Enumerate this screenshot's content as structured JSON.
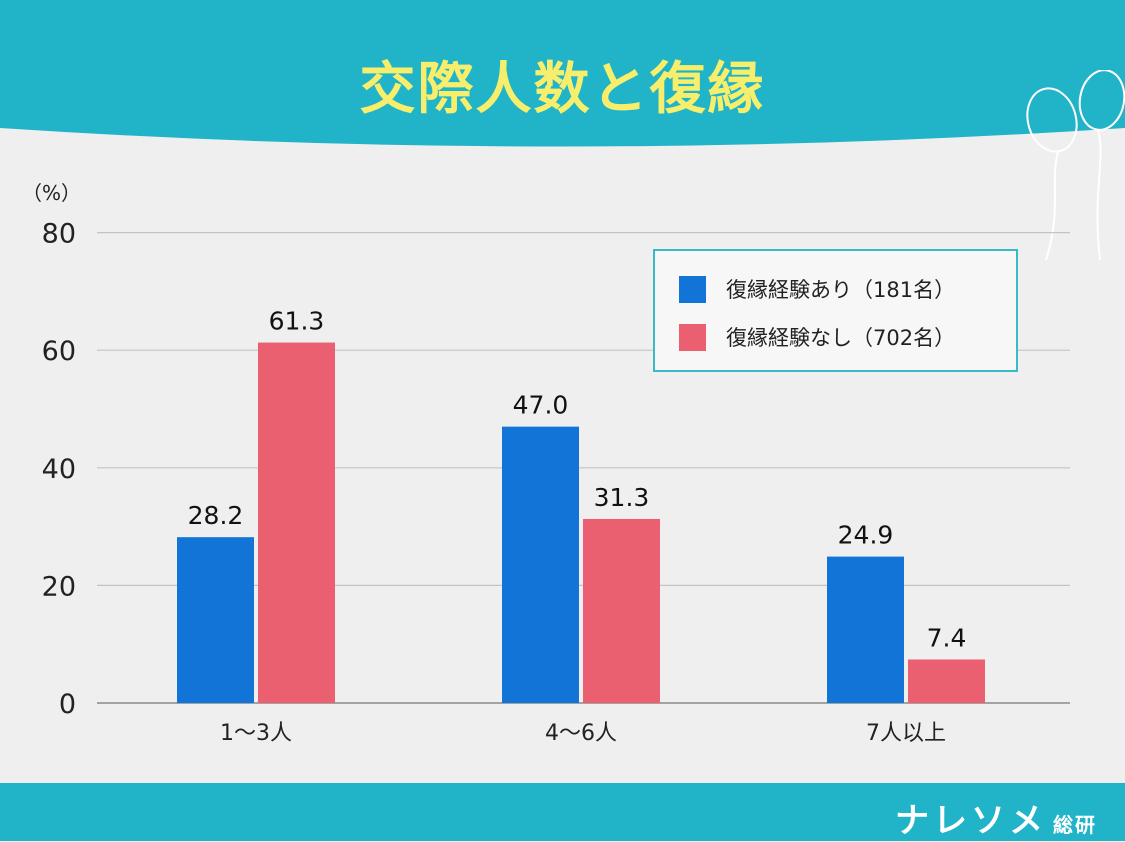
{
  "header": {
    "title": "交際人数と復縁",
    "band_color": "#21b4c8"
  },
  "chart_data": {
    "type": "bar",
    "unit_label": "（%）",
    "categories": [
      "1～3人",
      "4～6人",
      "7人以上"
    ],
    "series": [
      {
        "name": "復縁経験あり（181名）",
        "color": "#1274d6",
        "values": [
          28.2,
          47.0,
          24.9
        ],
        "labels": [
          "28.2",
          "47.0",
          "24.9"
        ]
      },
      {
        "name": "復縁経験なし（702名）",
        "color": "#ea6070",
        "values": [
          61.3,
          31.3,
          7.4
        ],
        "labels": [
          "61.3",
          "31.3",
          "7.4"
        ]
      }
    ],
    "ylim": [
      0,
      80
    ],
    "yticks": [
      0,
      20,
      40,
      60,
      80
    ],
    "grid": true,
    "legend_position": "top-right"
  },
  "footer": {
    "brand": "ナレソメ",
    "brand_sub": "総研"
  }
}
